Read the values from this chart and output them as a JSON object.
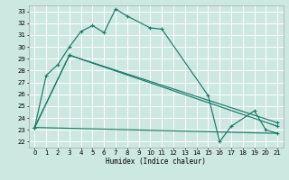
{
  "xlabel": "Humidex (Indice chaleur)",
  "bg_color": "#cce8e0",
  "grid_color": "#ffffff",
  "line_color": "#1a7a6a",
  "xlim": [
    -0.5,
    21.5
  ],
  "ylim": [
    21.5,
    33.5
  ],
  "xticks": [
    0,
    1,
    2,
    3,
    4,
    5,
    6,
    7,
    8,
    9,
    10,
    11,
    12,
    13,
    14,
    15,
    16,
    17,
    18,
    19,
    20,
    21
  ],
  "yticks": [
    22,
    23,
    24,
    25,
    26,
    27,
    28,
    29,
    30,
    31,
    32,
    33
  ],
  "line1_x": [
    0,
    1,
    2,
    3,
    4,
    5,
    6,
    7,
    8,
    10,
    11,
    15,
    16,
    17,
    19,
    20,
    21
  ],
  "line1_y": [
    23.2,
    27.6,
    28.5,
    30.0,
    31.3,
    31.8,
    31.2,
    33.2,
    32.6,
    31.6,
    31.5,
    25.9,
    22.0,
    23.3,
    24.6,
    23.0,
    22.7
  ],
  "line2_x": [
    0,
    3,
    21
  ],
  "line2_y": [
    23.2,
    29.3,
    23.3
  ],
  "line3_x": [
    0,
    3,
    21
  ],
  "line3_y": [
    23.2,
    29.3,
    23.6
  ],
  "line4_x": [
    0,
    21
  ],
  "line4_y": [
    23.2,
    22.7
  ]
}
